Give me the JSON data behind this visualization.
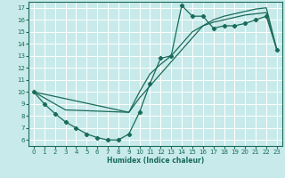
{
  "xlabel": "Humidex (Indice chaleur)",
  "xlim": [
    -0.5,
    23.5
  ],
  "ylim": [
    5.5,
    17.5
  ],
  "xticks": [
    0,
    1,
    2,
    3,
    4,
    5,
    6,
    7,
    8,
    9,
    10,
    11,
    12,
    13,
    14,
    15,
    16,
    17,
    18,
    19,
    20,
    21,
    22,
    23
  ],
  "yticks": [
    6,
    7,
    8,
    9,
    10,
    11,
    12,
    13,
    14,
    15,
    16,
    17
  ],
  "bg_color": "#c8eaea",
  "grid_color": "#ffffff",
  "line_color": "#1a6b5a",
  "series1_x": [
    0,
    1,
    2,
    3,
    4,
    5,
    6,
    7,
    8,
    9,
    10,
    11,
    12,
    13,
    14,
    15,
    16,
    17,
    18,
    19,
    20,
    21,
    22,
    23
  ],
  "series1_y": [
    10,
    9,
    8.2,
    7.5,
    7.0,
    6.5,
    6.2,
    6.0,
    6.0,
    6.5,
    8.3,
    10.7,
    12.8,
    13.0,
    17.2,
    16.3,
    16.3,
    15.3,
    15.5,
    15.5,
    15.7,
    16.0,
    16.3,
    13.5
  ],
  "series2_x": [
    0,
    3,
    9,
    10,
    11,
    12,
    13,
    14,
    15,
    16,
    17,
    18,
    19,
    20,
    21,
    22,
    23
  ],
  "series2_y": [
    10,
    8.5,
    8.3,
    10.0,
    11.5,
    12.3,
    13.0,
    14.0,
    15.0,
    15.5,
    15.8,
    16.0,
    16.2,
    16.4,
    16.5,
    16.6,
    13.5
  ],
  "series3_x": [
    0,
    9,
    10,
    11,
    12,
    13,
    14,
    15,
    16,
    17,
    18,
    19,
    20,
    21,
    22,
    23
  ],
  "series3_y": [
    10,
    8.3,
    9.5,
    10.5,
    11.5,
    12.5,
    13.5,
    14.5,
    15.5,
    16.0,
    16.3,
    16.5,
    16.7,
    16.9,
    17.0,
    13.5
  ]
}
